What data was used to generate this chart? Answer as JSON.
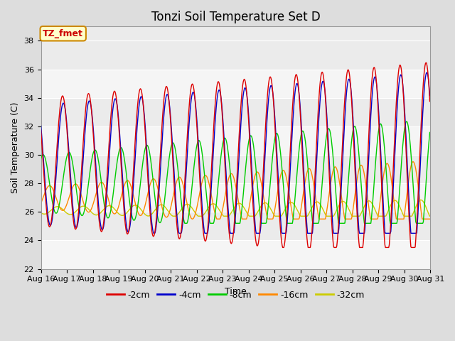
{
  "title": "Tonzi Soil Temperature Set D",
  "xlabel": "Time",
  "ylabel": "Soil Temperature (C)",
  "ylim": [
    22,
    39
  ],
  "yticks": [
    22,
    24,
    26,
    28,
    30,
    32,
    34,
    36,
    38
  ],
  "legend_labels": [
    "-2cm",
    "-4cm",
    "-8cm",
    "-16cm",
    "-32cm"
  ],
  "legend_colors": [
    "#dd0000",
    "#0000cc",
    "#00cc00",
    "#ff8800",
    "#cccc00"
  ],
  "annotation_text": "TZ_fmet",
  "annotation_color": "#cc0000",
  "annotation_bg": "#ffffcc",
  "annotation_border": "#cc8800",
  "n_days": 15,
  "start_day": 16,
  "points_per_day": 48
}
